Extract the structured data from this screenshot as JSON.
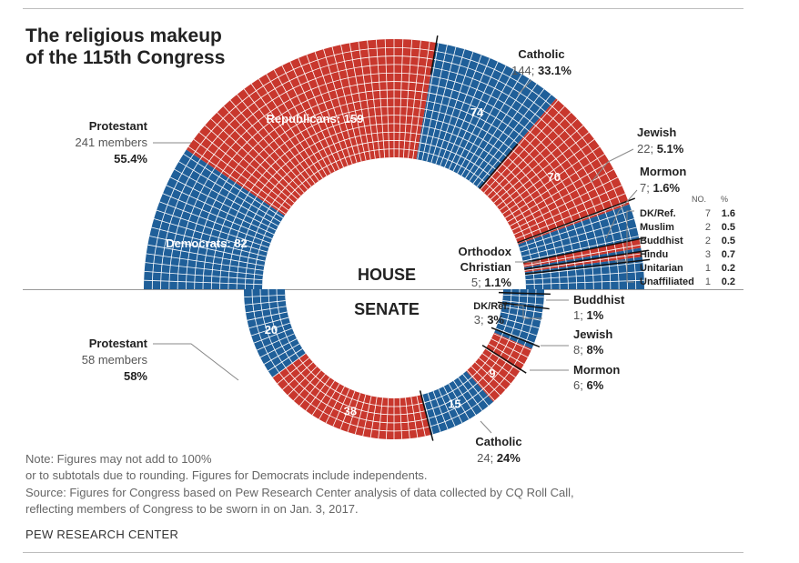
{
  "title": "The religious makeup\nof the 115th Congress",
  "notes": [
    "Note: Figures may not add to 100%",
    "or to subtotals due to rounding. Figures for Democrats include independents.",
    "Source: Figures for Congress based on Pew Research Center analysis of data collected by CQ Roll Call,",
    "reflecting members of Congress to be sworn in on Jan. 3, 2017."
  ],
  "footer": "PEW RESEARCH CENTER",
  "colors": {
    "democrat": "#1f5f99",
    "republican": "#c8372d",
    "text": "#222222",
    "muted": "#555555"
  },
  "chart_data": [
    {
      "type": "pie",
      "title": "HOUSE",
      "total": 435,
      "party_labels": {
        "democrats": "Democrats: 82",
        "republicans": "Republicans: 159"
      },
      "slices": [
        {
          "group": "Protestant",
          "party": "Democrats",
          "value": 82
        },
        {
          "group": "Protestant",
          "party": "Republicans",
          "value": 159
        },
        {
          "group": "Catholic",
          "party": "Democrats",
          "value": 74
        },
        {
          "group": "Catholic",
          "party": "Republicans",
          "value": 70
        },
        {
          "group": "Jewish",
          "party": "Republicans",
          "value": 2
        },
        {
          "group": "Jewish",
          "party": "Democrats",
          "value": 20
        },
        {
          "group": "Mormon",
          "party": "Republicans",
          "value": 5
        },
        {
          "group": "Mormon",
          "party": "Democrats",
          "value": 2
        },
        {
          "group": "Orthodox Christian",
          "party": "Republicans",
          "value": 3
        },
        {
          "group": "Orthodox Christian",
          "party": "Democrats",
          "value": 2
        },
        {
          "group": "Other",
          "party": "Democrats",
          "value": 16
        }
      ],
      "bar_labels": [
        "74",
        "70"
      ],
      "groups": [
        {
          "name": "Protestant",
          "count_text": "241 members",
          "pct": "55.4%"
        },
        {
          "name": "Catholic",
          "count_text": "144;",
          "pct": "33.1%"
        },
        {
          "name": "Jewish",
          "count_text": "22;",
          "pct": "5.1%"
        },
        {
          "name": "Mormon",
          "count_text": "7;",
          "pct": "1.6%"
        },
        {
          "name": "Orthodox",
          "name2": "Christian",
          "count_text": "5;",
          "pct": "1.1%"
        }
      ],
      "small_table": {
        "headers": [
          "NO.",
          "%"
        ],
        "rows": [
          {
            "name": "DK/Ref.",
            "no": "7",
            "pct": "1.6"
          },
          {
            "name": "Muslim",
            "no": "2",
            "pct": "0.5"
          },
          {
            "name": "Buddhist",
            "no": "2",
            "pct": "0.5"
          },
          {
            "name": "Hindu",
            "no": "3",
            "pct": "0.7"
          },
          {
            "name": "Unitarian",
            "no": "1",
            "pct": "0.2"
          },
          {
            "name": "Unaffiliated",
            "no": "1",
            "pct": "0.2"
          }
        ]
      }
    },
    {
      "type": "pie",
      "title": "SENATE",
      "total": 100,
      "slices": [
        {
          "group": "Protestant",
          "party": "Democrats",
          "value": 20
        },
        {
          "group": "Protestant",
          "party": "Republicans",
          "value": 38
        },
        {
          "group": "Catholic",
          "party": "Democrats",
          "value": 15
        },
        {
          "group": "Catholic",
          "party": "Republicans",
          "value": 9
        },
        {
          "group": "Mormon",
          "party": "Republicans",
          "value": 5
        },
        {
          "group": "Mormon",
          "party": "Democrats",
          "value": 1
        },
        {
          "group": "Jewish",
          "party": "Democrats",
          "value": 8
        },
        {
          "group": "DK/Ref.",
          "party": "Democrats",
          "value": 3
        },
        {
          "group": "Buddhist",
          "party": "Democrats",
          "value": 1
        }
      ],
      "bar_labels": [
        "20",
        "38",
        "15",
        "9"
      ],
      "groups": [
        {
          "name": "Protestant",
          "count_text": "58 members",
          "pct": "58%"
        },
        {
          "name": "Catholic",
          "count_text": "24;",
          "pct": "24%"
        },
        {
          "name": "Mormon",
          "count_text": "6;",
          "pct": "6%"
        },
        {
          "name": "Jewish",
          "count_text": "8;",
          "pct": "8%"
        },
        {
          "name": "DK/Ref.",
          "count_text": "3;",
          "pct": "3%"
        },
        {
          "name": "Buddhist",
          "count_text": "1;",
          "pct": "1%"
        }
      ]
    }
  ]
}
